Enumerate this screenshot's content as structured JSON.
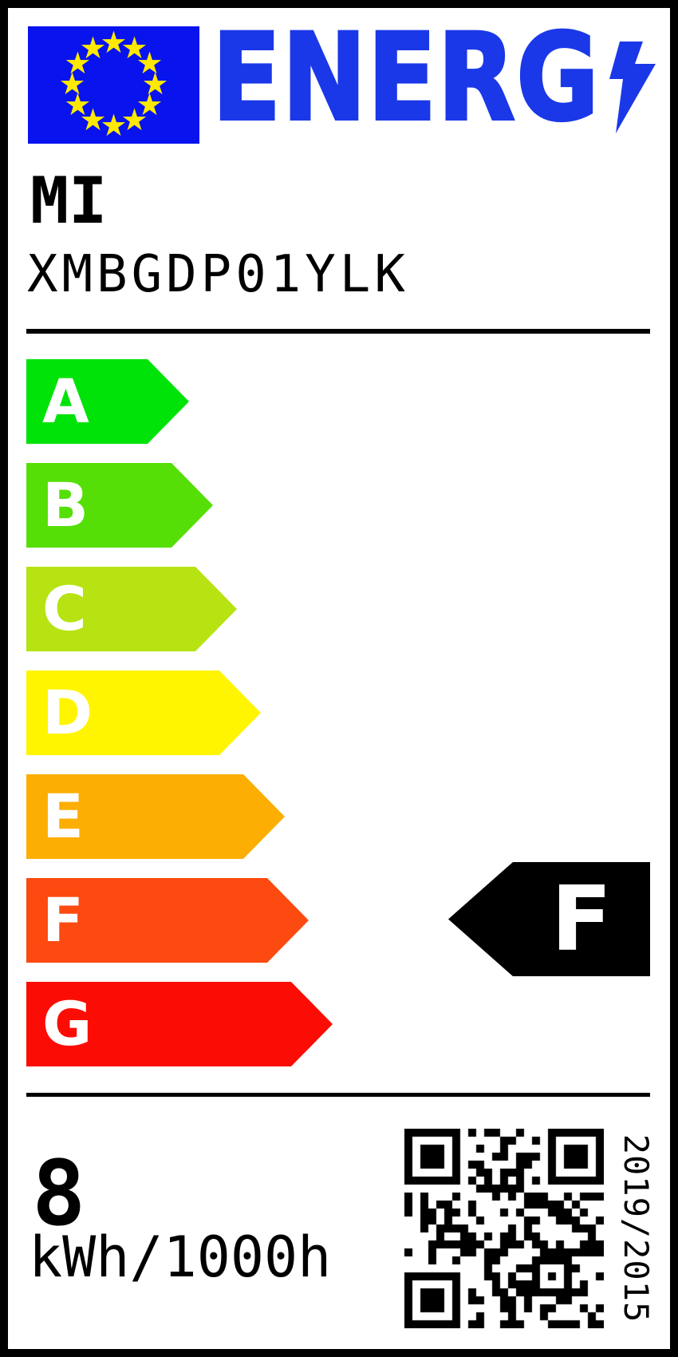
{
  "label": {
    "logo_text": "ENERG",
    "brand": "MI",
    "model": "XMBGDP01YLK",
    "rated_class": "F",
    "consumption_value": "8",
    "consumption_unit": "kWh/1000h",
    "regulation": "2019/2015"
  },
  "scale": {
    "classes": [
      {
        "letter": "A",
        "color": "#00e309"
      },
      {
        "letter": "B",
        "color": "#55df07"
      },
      {
        "letter": "C",
        "color": "#b7e312"
      },
      {
        "letter": "D",
        "color": "#fff500"
      },
      {
        "letter": "E",
        "color": "#fcae02"
      },
      {
        "letter": "F",
        "color": "#fc4a10"
      },
      {
        "letter": "G",
        "color": "#fb0d05"
      }
    ]
  },
  "colors": {
    "flag_bg": "#0813ee",
    "flag_stars": "#ffe900",
    "logo_blue": "#1a38e8",
    "rating_bg": "#000000",
    "arrow_text": "#ffffff",
    "frame": "#000000"
  },
  "icons": {
    "eu_flag": "eu-flag",
    "lightning": "lightning-bolt-icon",
    "qr": "qr-code"
  }
}
